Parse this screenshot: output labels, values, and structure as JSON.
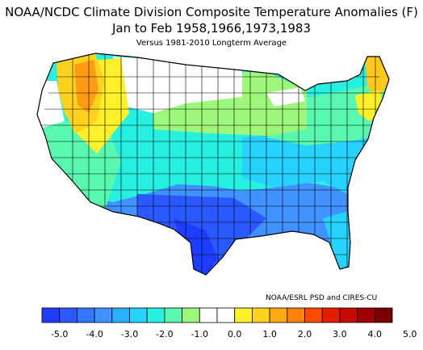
{
  "title": {
    "line1": "NOAA/NCDC Climate Division Composite Temperature Anomalies (F)",
    "line2": "Jan to Feb  1958,1966,1973,1983",
    "line3": "Versus 1981-2010 Longterm Average"
  },
  "credit": "NOAA/ESRL PSD and CIRES-CU",
  "legend": {
    "bins": [
      {
        "color": "#1e3cff"
      },
      {
        "color": "#2a5aff"
      },
      {
        "color": "#3477ff"
      },
      {
        "color": "#3f92ff"
      },
      {
        "color": "#2ab0ff"
      },
      {
        "color": "#27d2ff"
      },
      {
        "color": "#28f0e0"
      },
      {
        "color": "#5af7b0"
      },
      {
        "color": "#9cf77c"
      },
      {
        "color": "#ffffff"
      },
      {
        "color": "#ffffff"
      },
      {
        "color": "#fff02a"
      },
      {
        "color": "#ffd21e"
      },
      {
        "color": "#ffaa14"
      },
      {
        "color": "#ff820a"
      },
      {
        "color": "#ff4a00"
      },
      {
        "color": "#e61e00"
      },
      {
        "color": "#c80a00"
      },
      {
        "color": "#a00000"
      },
      {
        "color": "#780000"
      }
    ],
    "tick_labels": [
      "-5.0",
      "-4.0",
      "-3.0",
      "-2.0",
      "-1.0",
      "0.0",
      "1.0",
      "2.0",
      "3.0",
      "4.0",
      "5.0"
    ]
  },
  "map": {
    "regions": [
      {
        "name": "Pacific Northwest interior",
        "anomaly": 2.5,
        "color": "#ff9a14"
      },
      {
        "name": "Washington/Oregon coast",
        "anomaly": 1.5,
        "color": "#ffd21e"
      },
      {
        "name": "Idaho/Montana west",
        "anomaly": 1.2,
        "color": "#fff02a"
      },
      {
        "name": "Northern Plains / Montana east",
        "anomaly": 0.0,
        "color": "#ffffff"
      },
      {
        "name": "Upper Midwest",
        "anomaly": -1.2,
        "color": "#9cf77c"
      },
      {
        "name": "Great Basin / California",
        "anomaly": -1.5,
        "color": "#5af7b0"
      },
      {
        "name": "Great Lakes / Northeast",
        "anomaly": -1.7,
        "color": "#5af7b0"
      },
      {
        "name": "Southwest / Central Plains",
        "anomaly": -2.5,
        "color": "#28f0e0"
      },
      {
        "name": "Mid-Atlantic / Ohio Valley",
        "anomaly": -3.0,
        "color": "#27d2ff"
      },
      {
        "name": "Southern Plains / Southeast",
        "anomaly": -4.0,
        "color": "#3f92ff"
      },
      {
        "name": "Texas Gulf Coast / Gulf states",
        "anomaly": -5.0,
        "color": "#2a5aff"
      },
      {
        "name": "Florida peninsula",
        "anomaly": -2.5,
        "color": "#27d2ff"
      },
      {
        "name": "Maine",
        "anomaly": 2.0,
        "color": "#ffc81e"
      },
      {
        "name": "New England coast",
        "anomaly": 0.5,
        "color": "#fff02a"
      }
    ]
  }
}
